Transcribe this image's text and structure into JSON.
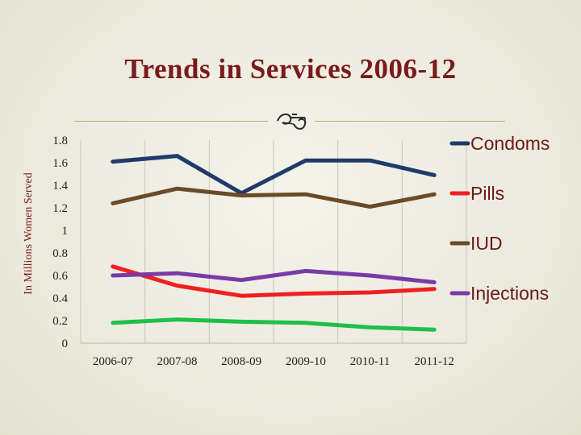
{
  "title": "Trends in Services 2006-12",
  "chart_data": {
    "type": "line",
    "ylabel": "In Millions Women Served",
    "xlabel": "",
    "categories": [
      "2006-07",
      "2007-08",
      "2008-09",
      "2009-10",
      "2010-11",
      "2011-12"
    ],
    "ylim": [
      0,
      1.8
    ],
    "yticks": [
      "0",
      "0.2",
      "0.4",
      "0.6",
      "0.8",
      "1",
      "1.2",
      "1.4",
      "1.6",
      "1.8"
    ],
    "grid": "vertical",
    "legend_position": "right",
    "series": [
      {
        "name": "Condoms",
        "color": "#1f3a6b",
        "values": [
          1.61,
          1.66,
          1.33,
          1.62,
          1.62,
          1.49
        ]
      },
      {
        "name": "Pills",
        "color": "#f02020",
        "values": [
          0.68,
          0.51,
          0.42,
          0.44,
          0.45,
          0.48
        ]
      },
      {
        "name": "IUD",
        "color": "#6b4a28",
        "values": [
          1.24,
          1.37,
          1.31,
          1.32,
          1.21,
          1.32
        ]
      },
      {
        "name": "Injections",
        "color": "#7a3aa8",
        "values": [
          0.6,
          0.62,
          0.56,
          0.64,
          0.6,
          0.54
        ]
      },
      {
        "name": "",
        "color": "#1fbf4a",
        "values": [
          0.18,
          0.21,
          0.19,
          0.18,
          0.14,
          0.12
        ]
      }
    ]
  }
}
